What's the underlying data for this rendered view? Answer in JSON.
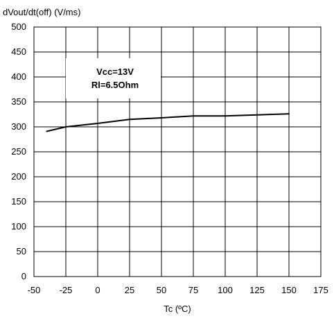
{
  "chart_data": {
    "type": "line",
    "title": "",
    "ylabel": "dVout/dt(off) (V/ms)",
    "xlabel": "Tc (ºC)",
    "xlim": [
      -50,
      175
    ],
    "ylim": [
      0,
      500
    ],
    "xticks": [
      -50,
      -25,
      0,
      25,
      50,
      75,
      100,
      125,
      150,
      175
    ],
    "yticks": [
      0,
      50,
      100,
      150,
      200,
      250,
      300,
      350,
      400,
      450,
      500
    ],
    "grid": true,
    "annotation": {
      "lines": [
        "Vcc=13V",
        "Rl=6.5Ohm"
      ]
    },
    "series": [
      {
        "x": [
          -40,
          -25,
          0,
          25,
          50,
          75,
          100,
          125,
          150
        ],
        "y": [
          291,
          300,
          307,
          315,
          318,
          322,
          322,
          324,
          326
        ]
      }
    ],
    "colors": {
      "line": "#000000",
      "grid": "#000000",
      "frame": "#000000"
    }
  }
}
